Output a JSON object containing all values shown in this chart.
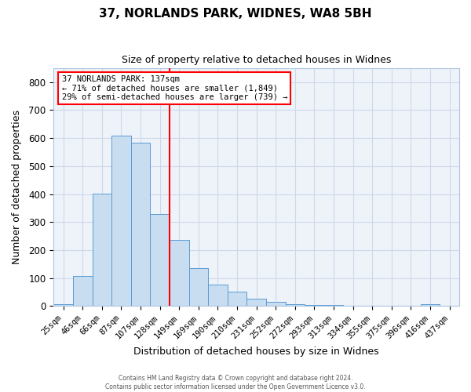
{
  "title": "37, NORLANDS PARK, WIDNES, WA8 5BH",
  "subtitle": "Size of property relative to detached houses in Widnes",
  "xlabel": "Distribution of detached houses by size in Widnes",
  "ylabel": "Number of detached properties",
  "bar_labels": [
    "25sqm",
    "46sqm",
    "66sqm",
    "87sqm",
    "107sqm",
    "128sqm",
    "149sqm",
    "169sqm",
    "190sqm",
    "210sqm",
    "231sqm",
    "252sqm",
    "272sqm",
    "293sqm",
    "313sqm",
    "334sqm",
    "355sqm",
    "375sqm",
    "396sqm",
    "416sqm",
    "437sqm"
  ],
  "bar_values": [
    7,
    107,
    403,
    610,
    585,
    330,
    237,
    135,
    78,
    52,
    25,
    15,
    8,
    5,
    3,
    1,
    0,
    0,
    0,
    8,
    0
  ],
  "bar_color": "#c9ddf0",
  "bar_edgecolor": "#5b9bd5",
  "vline_index": 6,
  "annotation_line1": "37 NORLANDS PARK: 137sqm",
  "annotation_line2": "← 71% of detached houses are smaller (1,849)",
  "annotation_line3": "29% of semi-detached houses are larger (739) →",
  "annotation_box_facecolor": "white",
  "annotation_box_edgecolor": "red",
  "vline_color": "red",
  "footer_line1": "Contains HM Land Registry data © Crown copyright and database right 2024.",
  "footer_line2": "Contains public sector information licensed under the Open Government Licence v3.0.",
  "ylim": [
    0,
    850
  ],
  "yticks": [
    0,
    100,
    200,
    300,
    400,
    500,
    600,
    700,
    800
  ],
  "grid_color": "#cdd8e8",
  "bg_color": "#eef3fa"
}
